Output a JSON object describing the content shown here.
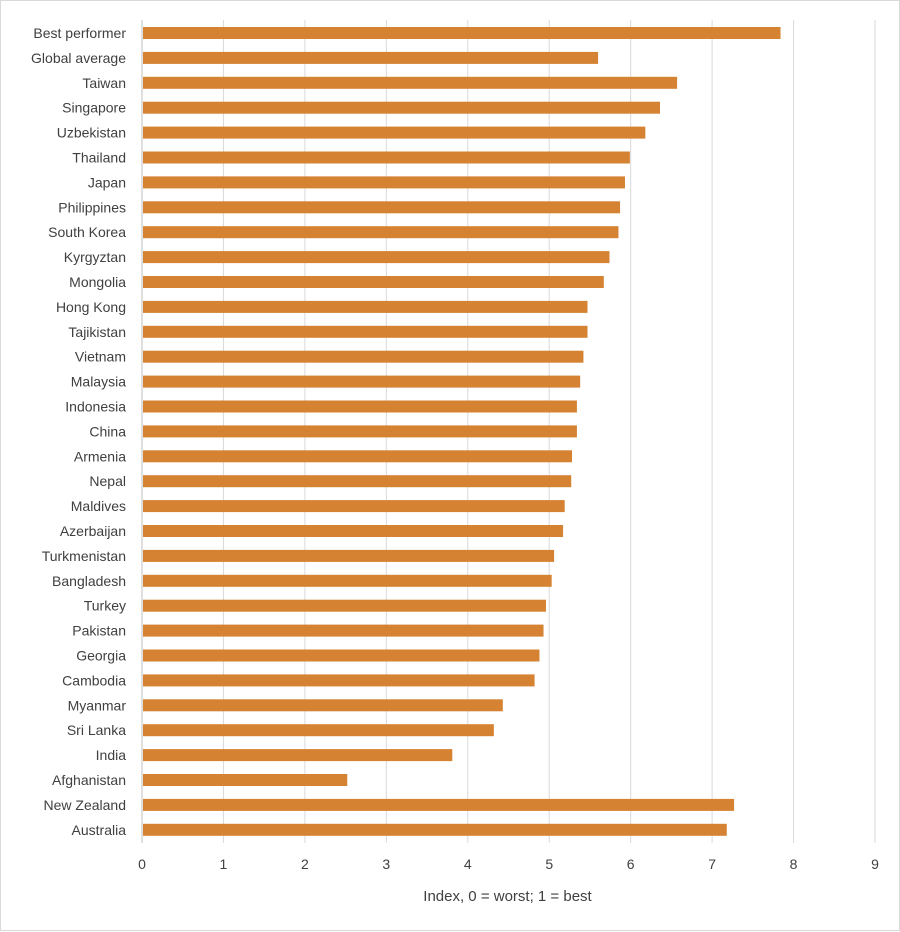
{
  "chart_data": {
    "type": "bar",
    "orientation": "horizontal",
    "title": "",
    "xlabel": "Index, 0 = worst; 1 = best",
    "ylabel": "",
    "xlim": [
      0,
      9
    ],
    "xticks": [
      "0",
      "1",
      "2",
      "3",
      "4",
      "5",
      "6",
      "7",
      "8",
      "9"
    ],
    "grid": "vertical",
    "legend": "none",
    "bar_color": "#D58232",
    "categories": [
      "Best performer",
      "Global average",
      "Taiwan",
      "Singapore",
      "Uzbekistan",
      "Thailand",
      "Japan",
      "Philippines",
      "South Korea",
      "Kyrgyztan",
      "Mongolia",
      "Hong Kong",
      "Tajikistan",
      "Vietnam",
      "Malaysia",
      "Indonesia",
      "China",
      "Armenia",
      "Nepal",
      "Maldives",
      "Azerbaijan",
      "Turkmenistan",
      "Bangladesh",
      "Turkey",
      "Pakistan",
      "Georgia",
      "Cambodia",
      "Myanmar",
      "Sri Lanka",
      "India",
      "Afghanistan",
      "New Zealand",
      "Australia"
    ],
    "values": [
      7.84,
      5.6,
      6.57,
      6.36,
      6.18,
      5.99,
      5.93,
      5.87,
      5.85,
      5.74,
      5.67,
      5.47,
      5.47,
      5.42,
      5.38,
      5.34,
      5.34,
      5.28,
      5.27,
      5.19,
      5.17,
      5.06,
      5.03,
      4.96,
      4.93,
      4.88,
      4.82,
      4.43,
      4.32,
      3.81,
      2.52,
      7.27,
      7.18
    ]
  }
}
